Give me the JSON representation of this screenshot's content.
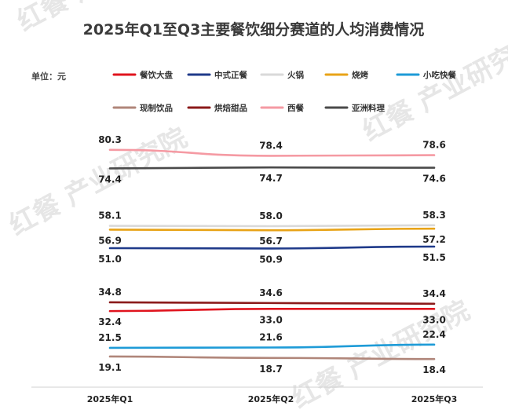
{
  "chart_data": {
    "type": "line",
    "title": "2025年Q1至Q3主要餐饮细分赛道的人均消费情况",
    "unit_label": "单位：元",
    "categories": [
      "2025年Q1",
      "2025年Q2",
      "2025年Q3"
    ],
    "series": [
      {
        "name": "餐饮大盘",
        "color": "#e0141e",
        "values": [
          32.4,
          33.0,
          33.0
        ]
      },
      {
        "name": "中式正餐",
        "color": "#1f3a8a",
        "values": [
          51.0,
          50.9,
          51.5
        ]
      },
      {
        "name": "火锅",
        "color": "#d9d9d9",
        "values": [
          58.1,
          58.0,
          58.3
        ]
      },
      {
        "name": "烧烤",
        "color": "#e8a317",
        "values": [
          56.9,
          56.7,
          57.2
        ]
      },
      {
        "name": "小吃快餐",
        "color": "#1e9bd7",
        "values": [
          21.5,
          21.6,
          22.4
        ]
      },
      {
        "name": "现制饮品",
        "color": "#b0867a",
        "values": [
          19.1,
          18.7,
          18.4
        ]
      },
      {
        "name": "烘焙甜品",
        "color": "#8b1a1a",
        "values": [
          34.8,
          34.6,
          34.4
        ]
      },
      {
        "name": "西餐",
        "color": "#f59aa3",
        "values": [
          80.3,
          78.4,
          78.6
        ]
      },
      {
        "name": "亚洲料理",
        "color": "#4a4a4a",
        "values": [
          74.4,
          74.7,
          74.6
        ]
      }
    ],
    "legend_position": "top",
    "grid": false
  },
  "watermark": "红餐 产业研究院"
}
